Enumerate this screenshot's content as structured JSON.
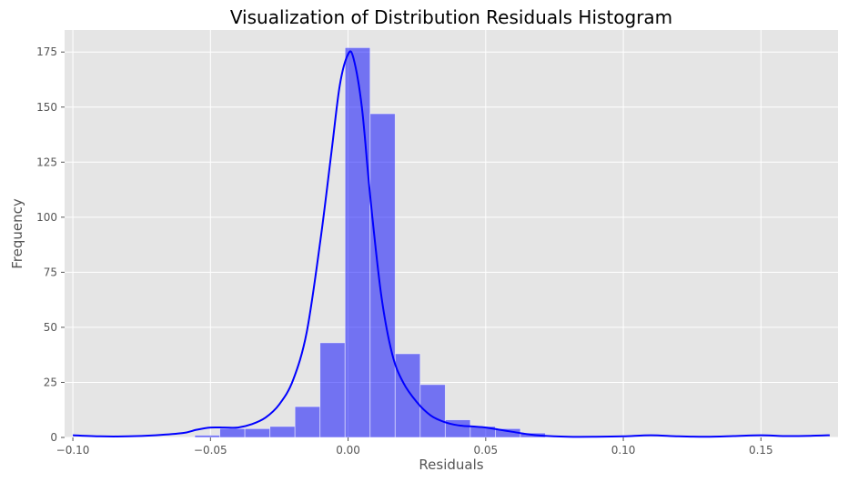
{
  "chart_data": {
    "type": "bar",
    "title": "Visualization of Distribution Residuals Histogram",
    "xlabel": "Residuals",
    "ylabel": "Frequency",
    "xlim": [
      -0.103,
      0.178
    ],
    "ylim": [
      0,
      185
    ],
    "xticks": [
      -0.1,
      -0.05,
      0.0,
      0.05,
      0.1,
      0.15
    ],
    "xtick_labels": [
      "−0.10",
      "−0.05",
      "0.00",
      "0.05",
      "0.10",
      "0.15"
    ],
    "yticks": [
      0,
      25,
      50,
      75,
      100,
      125,
      150,
      175
    ],
    "ytick_labels": [
      "0",
      "25",
      "50",
      "75",
      "100",
      "125",
      "150",
      "175"
    ],
    "grid": true,
    "bin_width": 0.0091,
    "bins": [
      {
        "x0": -0.0557,
        "count": 1
      },
      {
        "x0": -0.0466,
        "count": 4
      },
      {
        "x0": -0.0375,
        "count": 4
      },
      {
        "x0": -0.0284,
        "count": 5
      },
      {
        "x0": -0.0193,
        "count": 14
      },
      {
        "x0": -0.0102,
        "count": 43
      },
      {
        "x0": -0.0011,
        "count": 177
      },
      {
        "x0": 0.008,
        "count": 147
      },
      {
        "x0": 0.0171,
        "count": 38
      },
      {
        "x0": 0.0262,
        "count": 24
      },
      {
        "x0": 0.0353,
        "count": 8
      },
      {
        "x0": 0.0444,
        "count": 5
      },
      {
        "x0": 0.0535,
        "count": 4
      },
      {
        "x0": 0.0626,
        "count": 2
      }
    ],
    "kde": {
      "x": [
        -0.1,
        -0.09,
        -0.08,
        -0.07,
        -0.06,
        -0.055,
        -0.05,
        -0.045,
        -0.04,
        -0.035,
        -0.03,
        -0.025,
        -0.02,
        -0.015,
        -0.01,
        -0.006,
        -0.003,
        0.0,
        0.002,
        0.005,
        0.008,
        0.012,
        0.016,
        0.02,
        0.025,
        0.03,
        0.035,
        0.04,
        0.045,
        0.05,
        0.055,
        0.06,
        0.065,
        0.07,
        0.08,
        0.09,
        0.1,
        0.11,
        0.12,
        0.13,
        0.14,
        0.15,
        0.16,
        0.17,
        0.175
      ],
      "y": [
        1.0,
        0.5,
        0.5,
        1.0,
        2.0,
        3.5,
        4.5,
        4.5,
        4.5,
        6.0,
        9.0,
        15.0,
        26.0,
        48.0,
        90.0,
        130.0,
        160.0,
        174.0,
        172.0,
        150.0,
        110.0,
        65.0,
        38.0,
        25.0,
        16.0,
        10.0,
        7.0,
        5.5,
        5.0,
        4.5,
        3.5,
        2.5,
        1.5,
        0.8,
        0.3,
        0.3,
        0.5,
        1.0,
        0.5,
        0.3,
        0.6,
        1.0,
        0.6,
        0.8,
        1.0
      ]
    },
    "colors": {
      "background": "#e5e5e5",
      "grid": "#ffffff",
      "bar_fill": "#0000ff",
      "bar_opacity": 0.5,
      "line": "#0000ff"
    }
  }
}
